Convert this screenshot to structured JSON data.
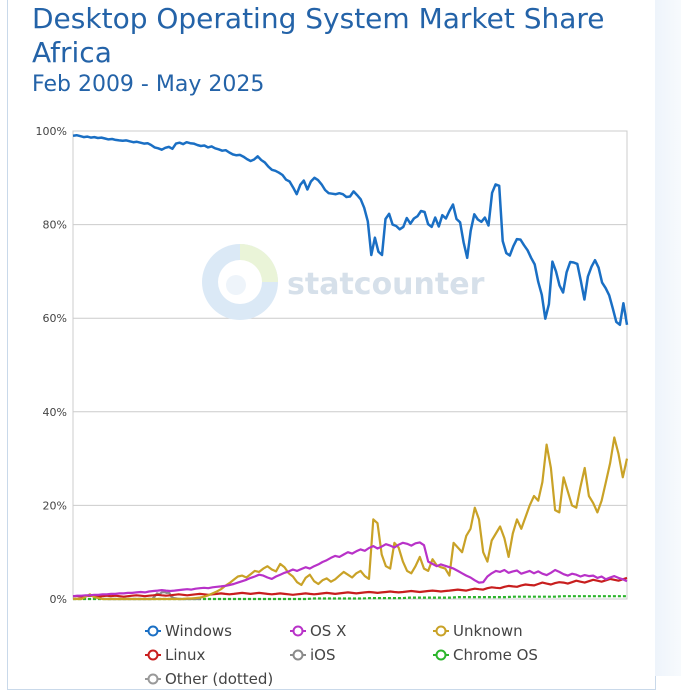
{
  "header": {
    "title_line1": "Desktop Operating System Market Share",
    "title_line2": "Africa",
    "subtitle": "Feb 2009 - May 2025"
  },
  "watermark": "statcounter",
  "colors": {
    "windows": "#1a6fc4",
    "osx": "#b832c8",
    "unknown": "#c9a227",
    "linux": "#c81e1e",
    "ios": "#8a8a8a",
    "chromeos": "#2bb52b",
    "grid": "#cccccc"
  },
  "legend": [
    {
      "key": "windows",
      "label": "Windows"
    },
    {
      "key": "osx",
      "label": "OS X"
    },
    {
      "key": "unknown",
      "label": "Unknown"
    },
    {
      "key": "linux",
      "label": "Linux"
    },
    {
      "key": "ios",
      "label": "iOS"
    },
    {
      "key": "chromeos",
      "label": "Chrome OS"
    },
    {
      "key": "other",
      "label": "Other (dotted)"
    }
  ],
  "chart_data": {
    "type": "line",
    "title": "Desktop Operating System Market Share",
    "subtitle": "Africa Feb 2009 - May 2025",
    "ylim": [
      0,
      100
    ],
    "y_ticks": [
      "0%",
      "20%",
      "40%",
      "60%",
      "80%",
      "100%"
    ],
    "x_range": [
      "2009-02",
      "2025-05"
    ],
    "n_points": 196,
    "grid": true,
    "legend_position": "bottom",
    "series": [
      {
        "name": "Windows",
        "key": "windows",
        "values": [
          99.0,
          99.1,
          98.9,
          98.7,
          98.8,
          98.6,
          98.7,
          98.5,
          98.6,
          98.4,
          98.2,
          98.3,
          98.1,
          98.0,
          97.9,
          98.0,
          97.8,
          97.6,
          97.7,
          97.5,
          97.3,
          97.4,
          97.0,
          96.5,
          96.3,
          96.0,
          96.4,
          96.6,
          96.2,
          97.3,
          97.5,
          97.2,
          97.6,
          97.4,
          97.3,
          97.0,
          96.8,
          96.9,
          96.5,
          96.7,
          96.3,
          96.1,
          95.8,
          95.9,
          95.4,
          95.0,
          94.8,
          94.9,
          94.5,
          94.0,
          93.6,
          93.9,
          94.6,
          93.8,
          93.3,
          92.4,
          91.7,
          91.5,
          91.1,
          90.6,
          89.6,
          89.2,
          87.9,
          86.5,
          88.5,
          89.4,
          87.5,
          89.2,
          90.0,
          89.5,
          88.6,
          87.4,
          86.7,
          86.6,
          86.5,
          86.7,
          86.5,
          85.9,
          86.0,
          87.1,
          86.3,
          85.4,
          83.6,
          80.7,
          73.5,
          77.2,
          74.2,
          73.5,
          81.2,
          82.3,
          80.0,
          79.7,
          79.0,
          79.5,
          81.4,
          80.2,
          81.3,
          81.8,
          82.9,
          82.7,
          80.1,
          79.5,
          81.5,
          79.6,
          82.0,
          81.3,
          82.9,
          84.3,
          81.2,
          80.5,
          76.2,
          72.9,
          78.7,
          82.2,
          81.1,
          80.6,
          81.5,
          79.8,
          86.8,
          88.6,
          88.3,
          76.5,
          73.9,
          73.4,
          75.4,
          76.9,
          76.8,
          75.6,
          74.5,
          72.9,
          71.5,
          67.8,
          65.0,
          59.9,
          63.0,
          72.1,
          70.0,
          67.0,
          65.5,
          69.8,
          72.0,
          71.9,
          71.6,
          68.0,
          64.0,
          68.9,
          71.0,
          72.4,
          70.8,
          67.6,
          66.4,
          64.9,
          62.1,
          59.2,
          58.6,
          63.2,
          58.6
        ],
        "raw_len": 161
      },
      {
        "name": "OS X",
        "key": "osx",
        "values": [
          0.6,
          0.7,
          0.7,
          0.8,
          0.8,
          0.9,
          0.9,
          1.0,
          1.0,
          1.1,
          1.1,
          1.2,
          1.2,
          1.3,
          1.3,
          1.4,
          1.5,
          1.4,
          1.6,
          1.7,
          1.8,
          1.9,
          1.8,
          1.7,
          1.8,
          1.9,
          2.0,
          2.1,
          2.0,
          2.2,
          2.3,
          2.4,
          2.3,
          2.5,
          2.6,
          2.7,
          2.8,
          3.0,
          3.2,
          3.5,
          3.8,
          4.1,
          4.5,
          4.8,
          5.2,
          5.0,
          4.6,
          4.3,
          4.8,
          5.2,
          5.6,
          5.9,
          6.3,
          6.0,
          6.4,
          6.8,
          6.5,
          7.0,
          7.4,
          7.9,
          8.3,
          8.8,
          9.2,
          9.0,
          9.5,
          10.0,
          9.7,
          10.2,
          10.6,
          10.3,
          10.9,
          11.3,
          10.8,
          11.2,
          11.7,
          11.4,
          11.0,
          11.6,
          12.0,
          11.8,
          11.4,
          11.9,
          12.1,
          11.5,
          8.0,
          7.5,
          7.0,
          7.4,
          7.1,
          6.8,
          6.5,
          6.0,
          5.5,
          5.0,
          4.6,
          4.0,
          3.5,
          3.6,
          4.8,
          5.5,
          6.0,
          5.8,
          6.2,
          5.6,
          5.9,
          6.1,
          5.4,
          5.7,
          6.0,
          5.5,
          5.9,
          5.4,
          5.1,
          5.6,
          6.2,
          5.8,
          5.3,
          5.0,
          5.4,
          5.2,
          4.8,
          5.1,
          4.9,
          5.0,
          4.5,
          4.8,
          4.2,
          4.6,
          4.9,
          4.5,
          4.2,
          3.8
        ]
      },
      {
        "name": "Unknown",
        "key": "unknown",
        "values": [
          0.0,
          0.0,
          0.0,
          0.5,
          1.0,
          0.4,
          0.2,
          0.0,
          0.0,
          0.0,
          0.0,
          0.0,
          0.0,
          0.0,
          0.0,
          0.0,
          0.0,
          0.0,
          0.0,
          0.0,
          0.0,
          0.0,
          0.0,
          0.0,
          0.0,
          0.0,
          0.0,
          0.1,
          0.1,
          0.2,
          0.3,
          0.5,
          0.8,
          1.2,
          1.6,
          2.1,
          2.8,
          3.4,
          4.1,
          4.8,
          5.0,
          4.6,
          5.3,
          6.0,
          5.8,
          6.5,
          7.0,
          6.3,
          5.9,
          7.5,
          6.8,
          5.5,
          4.8,
          3.6,
          3.0,
          4.5,
          5.2,
          3.8,
          3.2,
          4.0,
          4.4,
          3.7,
          4.2,
          5.0,
          5.8,
          5.2,
          4.6,
          5.5,
          6.0,
          4.9,
          4.3,
          17.0,
          16.2,
          9.5,
          7.0,
          6.5,
          12.0,
          11.0,
          8.0,
          6.0,
          5.5,
          7.0,
          9.0,
          6.5,
          6.0,
          8.5,
          7.2,
          6.8,
          6.5,
          5.0,
          12.0,
          11.0,
          10.0,
          13.5,
          15.0,
          19.5,
          17.0,
          10.0,
          8.0,
          12.5,
          14.0,
          15.5,
          13.0,
          9.0,
          14.0,
          17.0,
          15.0,
          17.5,
          20.0,
          22.0,
          21.0,
          25.0,
          33.0,
          28.0,
          19.0,
          18.5,
          26.0,
          23.0,
          20.0,
          19.5,
          24.0,
          28.0,
          22.0,
          20.5,
          18.5,
          21.0,
          25.0,
          29.0,
          34.5,
          31.0,
          26.0,
          30.0
        ]
      },
      {
        "name": "Linux",
        "key": "linux",
        "values": [
          0.6,
          0.6,
          0.5,
          0.6,
          0.7,
          0.6,
          0.5,
          0.6,
          0.7,
          0.6,
          0.7,
          0.6,
          0.5,
          0.6,
          0.7,
          0.8,
          0.7,
          0.6,
          0.7,
          0.8,
          0.9,
          0.8,
          0.7,
          0.8,
          0.9,
          1.0,
          0.9,
          0.8,
          0.9,
          1.0,
          1.1,
          1.0,
          0.9,
          1.0,
          1.1,
          1.2,
          1.1,
          1.0,
          1.1,
          1.2,
          1.3,
          1.2,
          1.1,
          1.2,
          1.3,
          1.2,
          1.1,
          1.0,
          1.1,
          1.2,
          1.1,
          1.0,
          0.9,
          1.0,
          1.1,
          1.2,
          1.1,
          1.0,
          1.1,
          1.2,
          1.3,
          1.2,
          1.1,
          1.2,
          1.3,
          1.4,
          1.3,
          1.2,
          1.3,
          1.4,
          1.5,
          1.4,
          1.3,
          1.4,
          1.5,
          1.6,
          1.5,
          1.4,
          1.5,
          1.6,
          1.7,
          1.6,
          1.5,
          1.6,
          1.7,
          1.8,
          1.7,
          1.6,
          1.7,
          1.8,
          1.9,
          2.0,
          1.9,
          1.8,
          2.0,
          2.2,
          2.1,
          2.0,
          2.3,
          2.5,
          2.4,
          2.3,
          2.6,
          2.8,
          2.7,
          2.6,
          2.9,
          3.1,
          3.0,
          2.9,
          3.2,
          3.5,
          3.3,
          3.1,
          3.4,
          3.6,
          3.5,
          3.3,
          3.6,
          3.9,
          3.7,
          3.5,
          3.8,
          4.1,
          3.9,
          3.7,
          4.0,
          4.3,
          4.1,
          3.9,
          4.2,
          4.5
        ]
      },
      {
        "name": "iOS",
        "key": "ios",
        "values": [
          0.0,
          0.0,
          0.0,
          0.0,
          0.0,
          0.0,
          0.0,
          0.0,
          0.0,
          0.0,
          0.0,
          0.0,
          0.0,
          0.0,
          0.0,
          0.0,
          0.0,
          0.0,
          0.0,
          0.0,
          0.5,
          1.2,
          1.0,
          1.4,
          1.5,
          1.3,
          1.4,
          0.5,
          0.2,
          0.1,
          0.0,
          0.0,
          0.0,
          0.0,
          0.0,
          0.0,
          0.0,
          0.0,
          0.0,
          0.0
        ]
      },
      {
        "name": "Chrome OS",
        "key": "chromeos",
        "values": [
          0.0,
          0.0,
          0.0,
          0.0,
          0.0,
          0.0,
          0.0,
          0.0,
          0.0,
          0.0,
          0.0,
          0.0,
          0.0,
          0.0,
          0.0,
          0.0,
          0.0,
          0.0,
          0.0,
          0.0,
          0.0,
          0.0,
          0.0,
          0.0,
          0.0,
          0.0,
          0.0,
          0.0,
          0.0,
          0.0,
          0.1,
          0.1,
          0.1,
          0.1,
          0.1,
          0.1,
          0.1,
          0.2,
          0.2,
          0.2,
          0.2,
          0.2,
          0.3,
          0.3,
          0.3,
          0.3,
          0.3,
          0.3,
          0.4,
          0.4,
          0.4,
          0.4,
          0.4,
          0.4,
          0.4,
          0.5,
          0.5,
          0.5,
          0.5,
          0.5,
          0.5,
          0.6,
          0.6,
          0.6,
          0.6,
          0.6,
          0.6,
          0.6,
          0.6,
          0.6
        ]
      }
    ]
  }
}
